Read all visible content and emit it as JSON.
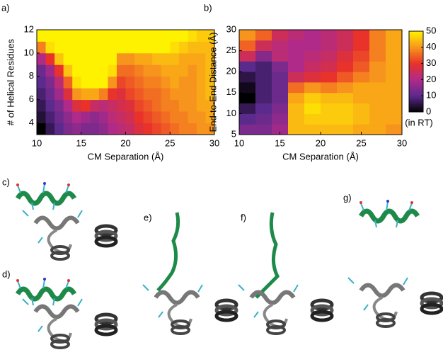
{
  "chart_data": [
    {
      "type": "heatmap",
      "label": "a)",
      "x_label": "CM Separation (Å)",
      "y_label": "# of Helical Residues",
      "xedges": [
        10,
        11,
        12,
        13,
        14,
        15,
        16,
        17,
        18,
        19,
        20,
        21,
        22,
        23,
        24,
        25,
        26,
        27,
        28,
        29,
        30
      ],
      "yedges": [
        3,
        4,
        5,
        6,
        7,
        8,
        9,
        10,
        11,
        12
      ],
      "z": [
        [
          0,
          6,
          10,
          14,
          16,
          14,
          14,
          16,
          20,
          22,
          24,
          28,
          30,
          32,
          34,
          36,
          38,
          38,
          40,
          40
        ],
        [
          4,
          8,
          12,
          16,
          20,
          18,
          16,
          18,
          22,
          24,
          26,
          30,
          32,
          34,
          36,
          38,
          38,
          40,
          40,
          42
        ],
        [
          6,
          10,
          14,
          20,
          28,
          30,
          24,
          22,
          24,
          26,
          28,
          32,
          34,
          36,
          38,
          38,
          40,
          40,
          42,
          42
        ],
        [
          8,
          12,
          18,
          28,
          40,
          42,
          42,
          38,
          30,
          28,
          32,
          34,
          36,
          36,
          38,
          40,
          40,
          40,
          42,
          44
        ],
        [
          10,
          14,
          22,
          35,
          48,
          50,
          50,
          50,
          40,
          32,
          34,
          36,
          38,
          38,
          40,
          42,
          40,
          40,
          42,
          44
        ],
        [
          12,
          18,
          30,
          45,
          50,
          50,
          50,
          50,
          48,
          36,
          36,
          38,
          40,
          40,
          42,
          42,
          42,
          40,
          42,
          44
        ],
        [
          20,
          30,
          45,
          50,
          50,
          50,
          50,
          50,
          50,
          40,
          40,
          42,
          42,
          44,
          44,
          44,
          42,
          42,
          42,
          44
        ],
        [
          38,
          48,
          50,
          50,
          50,
          50,
          50,
          50,
          50,
          50,
          50,
          50,
          50,
          50,
          50,
          48,
          46,
          44,
          44,
          44
        ],
        [
          50,
          50,
          50,
          50,
          50,
          50,
          50,
          50,
          50,
          50,
          50,
          50,
          50,
          50,
          50,
          50,
          50,
          48,
          46,
          46
        ]
      ],
      "xlim": [
        10,
        30
      ],
      "ylim": [
        3,
        12
      ],
      "xticks": [
        10,
        15,
        20,
        25,
        30
      ],
      "yticks": [
        4,
        6,
        8,
        10,
        12
      ],
      "zlim": [
        0,
        50
      ],
      "colors": [
        "#000000",
        "#5a2a8c",
        "#b02a8a",
        "#e8322a",
        "#f7941d",
        "#fff200"
      ]
    },
    {
      "type": "heatmap",
      "label": "b)",
      "x_label": "CM Separation (Å)",
      "y_label": "End-to-End Distance (Å)",
      "xedges": [
        10,
        12,
        14,
        16,
        18,
        20,
        22,
        24,
        26,
        28,
        30
      ],
      "yedges": [
        5,
        7.5,
        10,
        12.5,
        15,
        17.5,
        20,
        22.5,
        25,
        27.5,
        30
      ],
      "z": [
        [
          14,
          14,
          18,
          44,
          44,
          44,
          44,
          42,
          42,
          40
        ],
        [
          10,
          12,
          16,
          44,
          46,
          46,
          46,
          44,
          42,
          42
        ],
        [
          6,
          10,
          14,
          44,
          48,
          46,
          46,
          44,
          42,
          42
        ],
        [
          0,
          8,
          12,
          42,
          46,
          44,
          44,
          42,
          42,
          42
        ],
        [
          2,
          8,
          12,
          36,
          40,
          38,
          40,
          42,
          42,
          42
        ],
        [
          5,
          8,
          12,
          25,
          28,
          30,
          34,
          38,
          40,
          42
        ],
        [
          10,
          8,
          14,
          20,
          24,
          26,
          30,
          34,
          40,
          42
        ],
        [
          25,
          15,
          22,
          20,
          22,
          24,
          28,
          32,
          38,
          42
        ],
        [
          35,
          25,
          22,
          20,
          20,
          22,
          25,
          30,
          38,
          42
        ],
        [
          40,
          35,
          25,
          22,
          20,
          22,
          25,
          30,
          38,
          42
        ]
      ],
      "xlim": [
        10,
        30
      ],
      "ylim": [
        5,
        30
      ],
      "xticks": [
        10,
        15,
        20,
        25,
        30
      ],
      "yticks": [
        5,
        10,
        15,
        20,
        25,
        30
      ],
      "zlim": [
        0,
        50
      ],
      "zticks": [
        0,
        10,
        20,
        30,
        40,
        50
      ],
      "colorbar_label": "(in RT)",
      "colors": [
        "#000000",
        "#5a2a8c",
        "#b02a8a",
        "#e8322a",
        "#f7941d",
        "#fff200"
      ]
    }
  ],
  "panels": {
    "c": "c)",
    "d": "d)",
    "e": "e)",
    "f": "f)",
    "g": "g)"
  }
}
